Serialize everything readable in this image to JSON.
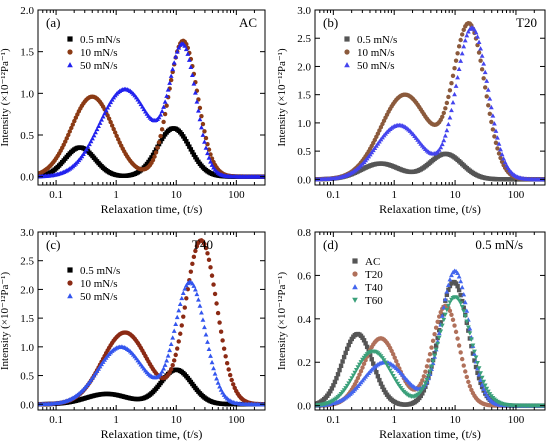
{
  "chart_data": [
    {
      "panel": "(a)",
      "tag": "AC",
      "type": "scatter",
      "xscale": "log",
      "xlim": [
        0.05,
        300
      ],
      "ylim": [
        -0.1,
        2.0
      ],
      "xlabel": "Relaxation time, (t/s)",
      "ylabel": "Intensity (×10⁻¹²Pa⁻¹)",
      "xticks": [
        "0.1",
        "1",
        "10",
        "100"
      ],
      "yticks": [
        "0.0",
        "0.5",
        "1.0",
        "1.5",
        "2.0"
      ],
      "legend_position": "top-left",
      "series": [
        {
          "name": "0.5 mN/s",
          "marker": "square",
          "color": "#000000",
          "peaks": [
            {
              "t": 0.25,
              "h": 0.35,
              "w": 0.25
            },
            {
              "t": 9.0,
              "h": 0.58,
              "w": 0.27
            }
          ]
        },
        {
          "name": "10 mN/s",
          "marker": "circle",
          "color": "#8b3a14",
          "peaks": [
            {
              "t": 0.4,
              "h": 0.96,
              "w": 0.35
            },
            {
              "t": 13.0,
              "h": 1.63,
              "w": 0.24
            }
          ]
        },
        {
          "name": "50 mN/s",
          "marker": "triangle",
          "color": "#2222ee",
          "peaks": [
            {
              "t": 1.4,
              "h": 1.05,
              "w": 0.42
            },
            {
              "t": 13.0,
              "h": 1.52,
              "w": 0.22
            }
          ]
        }
      ]
    },
    {
      "panel": "(b)",
      "tag": "T20",
      "type": "scatter",
      "xscale": "log",
      "xlim": [
        0.05,
        300
      ],
      "ylim": [
        -0.1,
        3.0
      ],
      "xlabel": "Relaxation time, (t/s)",
      "ylabel": "Intensity (×10⁻¹²Pa⁻¹)",
      "xticks": [
        "0.1",
        "1",
        "10",
        "100"
      ],
      "yticks": [
        "0.0",
        "0.5",
        "1.0",
        "1.5",
        "2.0",
        "2.5",
        "3.0"
      ],
      "legend_position": "top-left",
      "series": [
        {
          "name": "0.5 mN/s",
          "marker": "square",
          "color": "#555555",
          "peaks": [
            {
              "t": 0.6,
              "h": 0.28,
              "w": 0.32
            },
            {
              "t": 7.0,
              "h": 0.45,
              "w": 0.27
            }
          ]
        },
        {
          "name": "10 mN/s",
          "marker": "circle",
          "color": "#8b5a3c",
          "peaks": [
            {
              "t": 1.5,
              "h": 1.5,
              "w": 0.4
            },
            {
              "t": 17.0,
              "h": 2.72,
              "w": 0.26
            }
          ]
        },
        {
          "name": "50 mN/s",
          "marker": "triangle",
          "color": "#4444ee",
          "peaks": [
            {
              "t": 1.2,
              "h": 0.96,
              "w": 0.38
            },
            {
              "t": 19.0,
              "h": 2.68,
              "w": 0.26
            }
          ]
        }
      ]
    },
    {
      "panel": "(c)",
      "tag": "T40",
      "type": "scatter",
      "xscale": "log",
      "xlim": [
        0.05,
        300
      ],
      "ylim": [
        -0.1,
        3.0
      ],
      "xlabel": "Relaxation time, (t/s)",
      "ylabel": "Intensity (×10⁻¹²Pa⁻¹)",
      "xticks": [
        "0.1",
        "1",
        "10",
        "100"
      ],
      "yticks": [
        "0.0",
        "0.5",
        "1.0",
        "1.5",
        "2.0",
        "2.5",
        "3.0"
      ],
      "legend_position": "top-left",
      "series": [
        {
          "name": "0.5 mN/s",
          "marker": "square",
          "color": "#000000",
          "peaks": [
            {
              "t": 0.7,
              "h": 0.18,
              "w": 0.35
            },
            {
              "t": 10.0,
              "h": 0.6,
              "w": 0.26
            }
          ]
        },
        {
          "name": "10 mN/s",
          "marker": "circle",
          "color": "#8b2a14",
          "peaks": [
            {
              "t": 1.4,
              "h": 1.25,
              "w": 0.38
            },
            {
              "t": 26.0,
              "h": 2.85,
              "w": 0.26
            }
          ]
        },
        {
          "name": "50 mN/s",
          "marker": "triangle",
          "color": "#3355ee",
          "peaks": [
            {
              "t": 1.2,
              "h": 1.0,
              "w": 0.38
            },
            {
              "t": 17.0,
              "h": 2.12,
              "w": 0.25
            }
          ]
        }
      ]
    },
    {
      "panel": "(d)",
      "tag": "0.5 mN/s",
      "type": "scatter",
      "xscale": "log",
      "xlim": [
        0.05,
        300
      ],
      "ylim": [
        -0.02,
        0.8
      ],
      "xlabel": "Relaxation time, (t/s)",
      "ylabel": "Intensity (×10⁻¹²Pa⁻¹)",
      "xticks": [
        "0.1",
        "1",
        "10",
        "100"
      ],
      "yticks": [
        "0.0",
        "0.2",
        "0.4",
        "0.6",
        "0.8"
      ],
      "legend_position": "top-left",
      "series": [
        {
          "name": "AC",
          "marker": "square",
          "color": "#555555",
          "peaks": [
            {
              "t": 0.25,
              "h": 0.33,
              "w": 0.25
            },
            {
              "t": 9.5,
              "h": 0.57,
              "w": 0.24
            }
          ]
        },
        {
          "name": "T20",
          "marker": "circle",
          "color": "#b0705a",
          "peaks": [
            {
              "t": 0.6,
              "h": 0.31,
              "w": 0.28
            },
            {
              "t": 7.0,
              "h": 0.46,
              "w": 0.22
            }
          ]
        },
        {
          "name": "T40",
          "marker": "triangle",
          "color": "#4466ee",
          "peaks": [
            {
              "t": 0.7,
              "h": 0.2,
              "w": 0.35
            },
            {
              "t": 10.0,
              "h": 0.62,
              "w": 0.23
            }
          ]
        },
        {
          "name": "T60",
          "marker": "triangle-down",
          "color": "#3aa07a",
          "peaks": [
            {
              "t": 0.45,
              "h": 0.25,
              "w": 0.3
            },
            {
              "t": 10.0,
              "h": 0.5,
              "w": 0.27
            }
          ]
        }
      ]
    }
  ]
}
